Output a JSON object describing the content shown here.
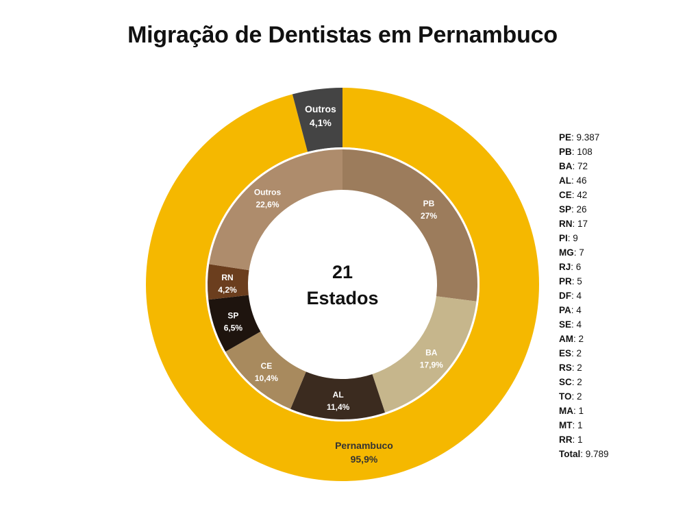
{
  "chart_data": {
    "type": "pie",
    "title": "Migração de Dentistas em Pernambuco",
    "center_text": {
      "line1": "21",
      "line2": "Estados"
    },
    "outer_ring": [
      {
        "label": "Pernambuco",
        "percent_label": "95,9%",
        "value": 95.9,
        "color": "#F5B800",
        "text_color": "#333333"
      },
      {
        "label": "Outros",
        "percent_label": "4,1%",
        "value": 4.1,
        "color": "#444444",
        "text_color": "#ffffff"
      }
    ],
    "inner_ring": [
      {
        "label": "PB",
        "percent_label": "27%",
        "value": 27.0,
        "color": "#9C7C5C",
        "text_color": "#ffffff"
      },
      {
        "label": "BA",
        "percent_label": "17,9%",
        "value": 17.9,
        "color": "#C6B68C",
        "text_color": "#ffffff"
      },
      {
        "label": "AL",
        "percent_label": "11,4%",
        "value": 11.4,
        "color": "#3B2B1F",
        "text_color": "#ffffff"
      },
      {
        "label": "CE",
        "percent_label": "10,4%",
        "value": 10.4,
        "color": "#A88A5E",
        "text_color": "#ffffff"
      },
      {
        "label": "SP",
        "percent_label": "6,5%",
        "value": 6.5,
        "color": "#1E140E",
        "text_color": "#ffffff"
      },
      {
        "label": "RN",
        "percent_label": "4,2%",
        "value": 4.2,
        "color": "#6B3E1E",
        "text_color": "#ffffff"
      },
      {
        "label": "Outros",
        "percent_label": "22,6%",
        "value": 22.6,
        "color": "#AE8C6C",
        "text_color": "#ffffff"
      }
    ],
    "legend": [
      {
        "key": "PE",
        "value": "9.387"
      },
      {
        "key": "PB",
        "value": "108"
      },
      {
        "key": "BA",
        "value": "72"
      },
      {
        "key": "AL",
        "value": "46"
      },
      {
        "key": "CE",
        "value": "42"
      },
      {
        "key": "SP",
        "value": "26"
      },
      {
        "key": "RN",
        "value": "17"
      },
      {
        "key": "PI",
        "value": "9"
      },
      {
        "key": "MG",
        "value": "7"
      },
      {
        "key": "RJ",
        "value": "6"
      },
      {
        "key": "PR",
        "value": "5"
      },
      {
        "key": "DF",
        "value": "4"
      },
      {
        "key": "PA",
        "value": "4"
      },
      {
        "key": "SE",
        "value": "4"
      },
      {
        "key": "AM",
        "value": "2"
      },
      {
        "key": "ES",
        "value": "2"
      },
      {
        "key": "RS",
        "value": "2"
      },
      {
        "key": "SC",
        "value": "2"
      },
      {
        "key": "TO",
        "value": "2"
      },
      {
        "key": "MA",
        "value": "1"
      },
      {
        "key": "MT",
        "value": "1"
      },
      {
        "key": "RR",
        "value": "1"
      },
      {
        "key": "Total",
        "value": "9.789"
      }
    ],
    "legend_placement": "right"
  }
}
